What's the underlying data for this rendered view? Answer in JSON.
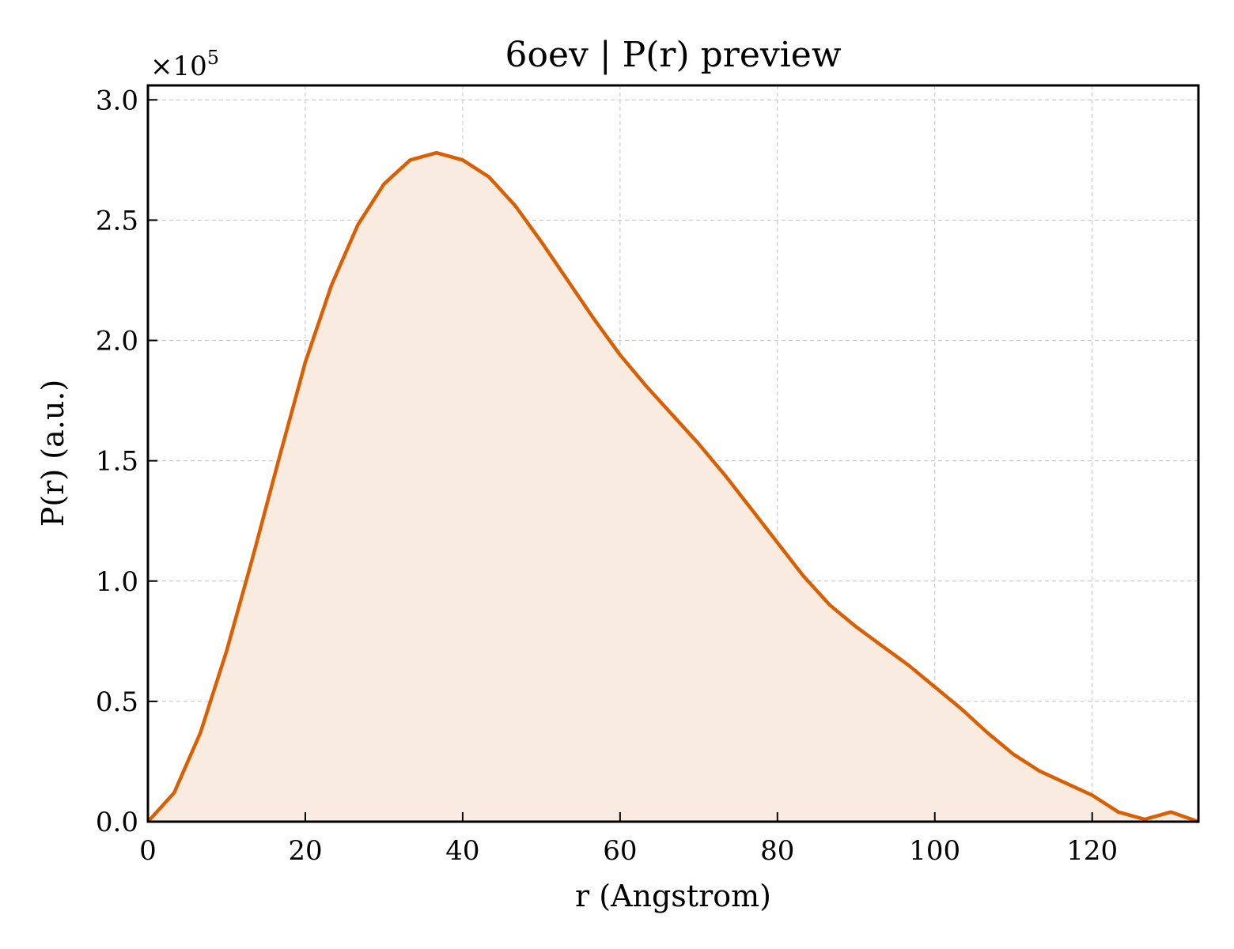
{
  "chart_data": {
    "type": "area",
    "title": "6oev | P(r) preview",
    "xlabel": "r (Angstrom)",
    "ylabel": "P(r) (a.u.)",
    "y_offset_label": "×10",
    "y_offset_exponent": "5",
    "xlim": [
      0,
      133.5
    ],
    "ylim": [
      0,
      3.06
    ],
    "x_ticks": [
      0,
      20,
      40,
      60,
      80,
      100,
      120
    ],
    "x_tick_labels": [
      "0",
      "20",
      "40",
      "60",
      "80",
      "100",
      "120"
    ],
    "y_ticks": [
      0.0,
      0.5,
      1.0,
      1.5,
      2.0,
      2.5,
      3.0
    ],
    "y_tick_labels": [
      "0.0",
      "0.5",
      "1.0",
      "1.5",
      "2.0",
      "2.5",
      "3.0"
    ],
    "grid": true,
    "line_color": "#d95f02",
    "fill_color": "#f9ebe0",
    "series": [
      {
        "x": [
          0,
          3.33,
          6.67,
          10,
          13.33,
          16.67,
          20,
          23.33,
          26.67,
          30,
          33.33,
          36.67,
          40,
          43.33,
          46.67,
          50,
          53.33,
          56.67,
          60,
          63.33,
          66.67,
          70,
          73.33,
          76.67,
          80,
          83.33,
          86.67,
          90,
          93.33,
          96.67,
          100,
          103.33,
          106.67,
          110,
          113.33,
          116.67,
          120,
          123.33,
          126.67,
          130,
          133.5
        ],
        "y": [
          0.0,
          0.12,
          0.37,
          0.71,
          1.1,
          1.51,
          1.91,
          2.23,
          2.48,
          2.65,
          2.75,
          2.78,
          2.75,
          2.68,
          2.56,
          2.41,
          2.25,
          2.09,
          1.94,
          1.81,
          1.69,
          1.57,
          1.44,
          1.3,
          1.16,
          1.02,
          0.9,
          0.81,
          0.73,
          0.65,
          0.56,
          0.47,
          0.37,
          0.28,
          0.21,
          0.16,
          0.11,
          0.04,
          0.01,
          0.04,
          0.0
        ]
      }
    ]
  }
}
